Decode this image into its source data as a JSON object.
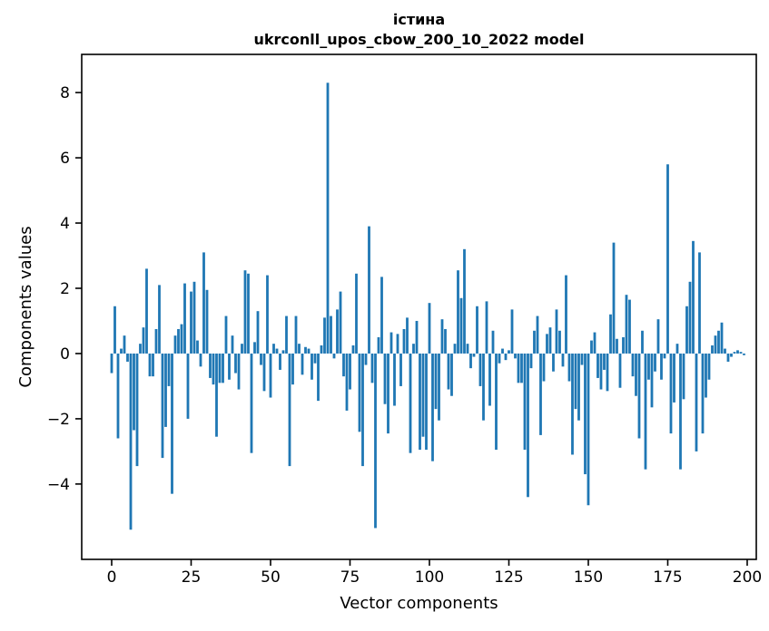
{
  "chart_data": {
    "type": "bar",
    "title": "істина",
    "subtitle": "ukrconll_upos_cbow_200_10_2022 model",
    "xlabel": "Vector components",
    "ylabel": "Components values",
    "bar_color": "#1f77b4",
    "axis_color": "#000000",
    "background_color": "#ffffff",
    "legend": "none",
    "grid": false,
    "x_ticks": [
      0,
      25,
      50,
      75,
      100,
      125,
      150,
      175,
      200
    ],
    "y_ticks": [
      8,
      6,
      4,
      2,
      0,
      -2,
      -4
    ],
    "xlim": [
      -9.43,
      202.86
    ],
    "ylim": [
      -6.31,
      9.17
    ],
    "x_start": 0,
    "n_components": 200,
    "values": [
      -0.6,
      1.45,
      -2.6,
      0.15,
      0.55,
      -0.25,
      -5.4,
      -2.35,
      -3.45,
      0.3,
      0.8,
      2.6,
      -0.7,
      -0.7,
      0.75,
      2.1,
      -3.2,
      -2.25,
      -1.0,
      -4.3,
      0.55,
      0.75,
      0.9,
      2.15,
      -2.0,
      1.9,
      2.2,
      0.4,
      -0.4,
      3.1,
      1.95,
      -0.75,
      -0.95,
      -2.55,
      -0.9,
      -0.9,
      1.15,
      -0.8,
      0.55,
      -0.6,
      -1.1,
      0.3,
      2.55,
      2.45,
      -3.05,
      0.35,
      1.3,
      -0.35,
      -1.15,
      2.4,
      -1.35,
      0.3,
      0.15,
      -0.5,
      0.1,
      1.15,
      -3.45,
      -0.95,
      1.15,
      0.3,
      -0.65,
      0.2,
      0.15,
      -0.8,
      -0.3,
      -1.45,
      0.25,
      1.1,
      8.3,
      1.15,
      -0.15,
      1.35,
      1.9,
      -0.7,
      -1.75,
      -1.1,
      0.25,
      2.45,
      -2.4,
      -3.45,
      -0.35,
      3.9,
      -0.9,
      -5.35,
      0.5,
      2.35,
      -1.55,
      -2.45,
      0.65,
      -1.6,
      0.6,
      -1.0,
      0.75,
      1.1,
      -3.05,
      0.3,
      1.0,
      -2.95,
      -2.55,
      -2.95,
      1.55,
      -3.3,
      -1.7,
      -2.05,
      1.05,
      0.75,
      -1.1,
      -1.3,
      0.3,
      2.55,
      1.7,
      3.2,
      0.3,
      -0.45,
      -0.1,
      1.45,
      -1.0,
      -2.05,
      1.6,
      -1.6,
      0.7,
      -2.95,
      -0.3,
      0.15,
      -0.2,
      0.1,
      1.35,
      -0.15,
      -0.9,
      -0.9,
      -2.95,
      -4.4,
      -0.45,
      0.7,
      1.15,
      -2.5,
      -0.85,
      0.6,
      0.8,
      -0.55,
      1.35,
      0.7,
      -0.4,
      2.4,
      -0.85,
      -3.1,
      -1.7,
      -2.05,
      -0.35,
      -3.7,
      -4.65,
      0.4,
      0.65,
      -0.75,
      -1.1,
      -0.5,
      -1.15,
      1.2,
      3.4,
      0.45,
      -1.05,
      0.5,
      1.8,
      1.65,
      -0.7,
      -1.3,
      -2.6,
      0.7,
      -3.55,
      -0.8,
      -1.65,
      -0.55,
      1.05,
      -0.8,
      -0.15,
      5.8,
      -2.45,
      -1.5,
      0.3,
      -3.55,
      -1.4,
      1.45,
      2.2,
      3.45,
      -3.0,
      3.1,
      -2.45,
      -1.35,
      -0.8,
      0.25,
      0.55,
      0.7,
      0.95,
      0.15,
      -0.25,
      -0.1,
      0.05,
      0.1,
      0.05,
      -0.05
    ]
  }
}
